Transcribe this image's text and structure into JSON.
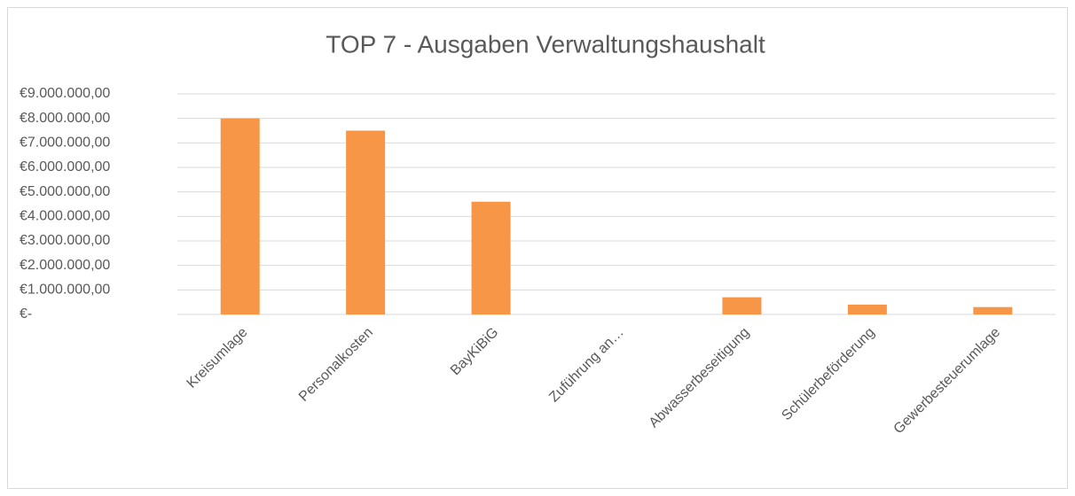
{
  "chart_data": {
    "type": "bar",
    "title": "TOP 7 - Ausgaben Verwaltungshaushalt",
    "categories": [
      "Kreisumlage",
      "Personalkosten",
      "BayKiBiG",
      "Zuführung an…",
      "Abwasserbeseitigung",
      "Schülerbeförderung",
      "Gewerbesteuerumlage"
    ],
    "values": [
      8000000,
      7500000,
      4600000,
      0,
      700000,
      400000,
      300000
    ],
    "color": "#f79646",
    "ylim": [
      0,
      9000000
    ],
    "yticks": [
      {
        "value": 0,
        "label": "€-"
      },
      {
        "value": 1000000,
        "label": "€1.000.000,00"
      },
      {
        "value": 2000000,
        "label": "€2.000.000,00"
      },
      {
        "value": 3000000,
        "label": "€3.000.000,00"
      },
      {
        "value": 4000000,
        "label": "€4.000.000,00"
      },
      {
        "value": 5000000,
        "label": "€5.000.000,00"
      },
      {
        "value": 6000000,
        "label": "€6.000.000,00"
      },
      {
        "value": 7000000,
        "label": "€7.000.000,00"
      },
      {
        "value": 8000000,
        "label": "€8.000.000,00"
      },
      {
        "value": 9000000,
        "label": "€9.000.000,00"
      }
    ],
    "grid": true
  }
}
